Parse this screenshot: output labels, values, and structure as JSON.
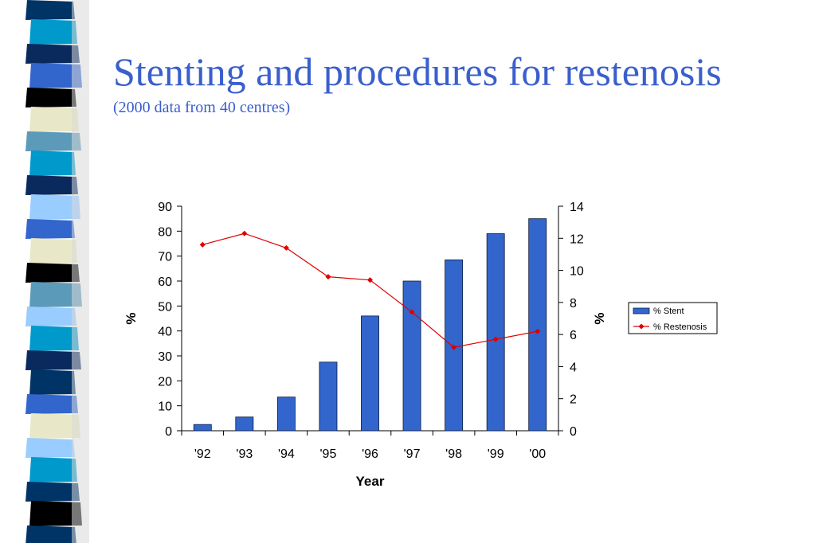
{
  "slide": {
    "title": "Stenting and procedures for restenosis",
    "subtitle": "(2000 data from 40 centres)"
  },
  "colors": {
    "title": "#3a5fcd",
    "bar": "#3366cc",
    "line": "#e00000",
    "strip": [
      "#0a2a5e",
      "#0099cc",
      "#e8e8c8",
      "#000000",
      "#3366cc",
      "#5b9ab8",
      "#99ccff",
      "#003366"
    ]
  },
  "chart_data": {
    "type": "bar",
    "categories": [
      "'92",
      "'93",
      "'94",
      "'95",
      "'96",
      "'97",
      "'98",
      "'99",
      "'00"
    ],
    "series": [
      {
        "name": "% Stent",
        "type": "bar",
        "axis": "left",
        "values": [
          2.5,
          5.5,
          13.5,
          27.5,
          46,
          60,
          68.5,
          79,
          85
        ]
      },
      {
        "name": "% Restenosis",
        "type": "line",
        "axis": "right",
        "values": [
          11.6,
          12.3,
          11.4,
          9.6,
          9.4,
          7.4,
          5.2,
          5.7,
          6.2
        ]
      }
    ],
    "xlabel": "Year",
    "ylabel_left": "%",
    "ylabel_right": "%",
    "ylim_left": [
      0,
      90
    ],
    "yticks_left": [
      0,
      10,
      20,
      30,
      40,
      50,
      60,
      70,
      80,
      90
    ],
    "ylim_right": [
      0,
      14
    ],
    "yticks_right": [
      0,
      2,
      4,
      6,
      8,
      10,
      12,
      14
    ],
    "grid": false,
    "legend_position": "right"
  }
}
